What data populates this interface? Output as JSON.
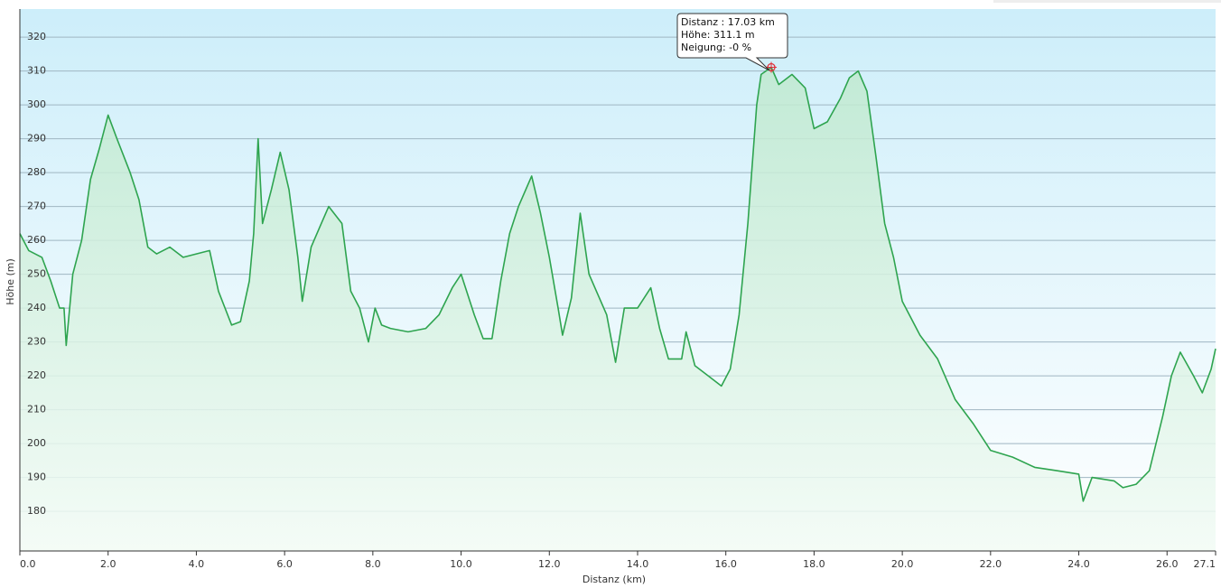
{
  "chart_data": {
    "type": "area",
    "x_label": "Distanz  (km)",
    "y_label": "Höhe (m)",
    "x": [
      0,
      0.2,
      0.5,
      0.7,
      0.9,
      1.0,
      1.05,
      1.2,
      1.4,
      1.6,
      1.8,
      2.0,
      2.2,
      2.5,
      2.7,
      2.9,
      3.1,
      3.4,
      3.7,
      4.0,
      4.3,
      4.5,
      4.8,
      5.0,
      5.2,
      5.3,
      5.4,
      5.5,
      5.7,
      5.9,
      6.1,
      6.3,
      6.4,
      6.6,
      6.8,
      7.0,
      7.3,
      7.5,
      7.7,
      7.9,
      8.05,
      8.2,
      8.4,
      8.8,
      9.2,
      9.5,
      9.8,
      10.0,
      10.3,
      10.5,
      10.7,
      10.9,
      11.1,
      11.3,
      11.6,
      11.8,
      12.0,
      12.2,
      12.3,
      12.5,
      12.7,
      12.9,
      13.1,
      13.3,
      13.5,
      13.7,
      14.0,
      14.3,
      14.5,
      14.7,
      15.0,
      15.1,
      15.3,
      15.6,
      15.9,
      16.1,
      16.3,
      16.5,
      16.7,
      16.8,
      17.03,
      17.2,
      17.5,
      17.8,
      18.0,
      18.3,
      18.6,
      18.8,
      19.0,
      19.2,
      19.4,
      19.6,
      19.8,
      20.0,
      20.4,
      20.8,
      21.2,
      21.6,
      22.0,
      22.5,
      23.0,
      23.5,
      24.0,
      24.1,
      24.3,
      24.8,
      25.0,
      25.3,
      25.6,
      25.9,
      26.1,
      26.3,
      26.6,
      26.8,
      27.0,
      27.1
    ],
    "series": [
      {
        "name": "Höhe",
        "color": "#2ea44f",
        "values": [
          262,
          257,
          255,
          248,
          240,
          240,
          229,
          250,
          260,
          278,
          287,
          297,
          290,
          280,
          272,
          258,
          256,
          258,
          255,
          256,
          257,
          245,
          235,
          236,
          248,
          262,
          290,
          265,
          275,
          286,
          275,
          255,
          242,
          258,
          264,
          270,
          265,
          245,
          240,
          230,
          240,
          235,
          234,
          233,
          234,
          238,
          246,
          250,
          238,
          231,
          231,
          248,
          262,
          270,
          279,
          268,
          255,
          240,
          232,
          243,
          268,
          250,
          244,
          238,
          224,
          240,
          240,
          246,
          234,
          225,
          225,
          233,
          223,
          220,
          217,
          222,
          238,
          265,
          300,
          309,
          311.1,
          306,
          309,
          305,
          293,
          295,
          302,
          308,
          310,
          304,
          285,
          265,
          255,
          242,
          232,
          225,
          213,
          206,
          198,
          196,
          193,
          192,
          191,
          183,
          190,
          189,
          187,
          188,
          192,
          208,
          220,
          227,
          220,
          215,
          222,
          228
        ]
      }
    ],
    "xlim": [
      0,
      27.1
    ],
    "ylim": [
      168.3,
      328.3
    ],
    "xticks": [
      {
        "value": 0,
        "label": "0.0"
      },
      {
        "value": 2,
        "label": "2.0"
      },
      {
        "value": 4,
        "label": "4.0"
      },
      {
        "value": 6,
        "label": "6.0"
      },
      {
        "value": 8,
        "label": "8.0"
      },
      {
        "value": 10,
        "label": "10.0"
      },
      {
        "value": 12,
        "label": "12.0"
      },
      {
        "value": 14,
        "label": "14.0"
      },
      {
        "value": 16,
        "label": "16.0"
      },
      {
        "value": 18,
        "label": "18.0"
      },
      {
        "value": 20,
        "label": "20.0"
      },
      {
        "value": 22,
        "label": "22.0"
      },
      {
        "value": 24,
        "label": "24.0"
      },
      {
        "value": 26,
        "label": "26.0"
      },
      27.1
    ],
    "yticks": [
      180,
      190,
      200,
      210,
      220,
      230,
      240,
      250,
      260,
      270,
      280,
      290,
      300,
      310,
      320
    ],
    "grid": true,
    "marker": {
      "x": 17.03,
      "y": 311.1
    },
    "tooltip": [
      "Distanz : 17.03 km",
      "Höhe: 311.1 m",
      "Neigung: -0 %"
    ]
  }
}
